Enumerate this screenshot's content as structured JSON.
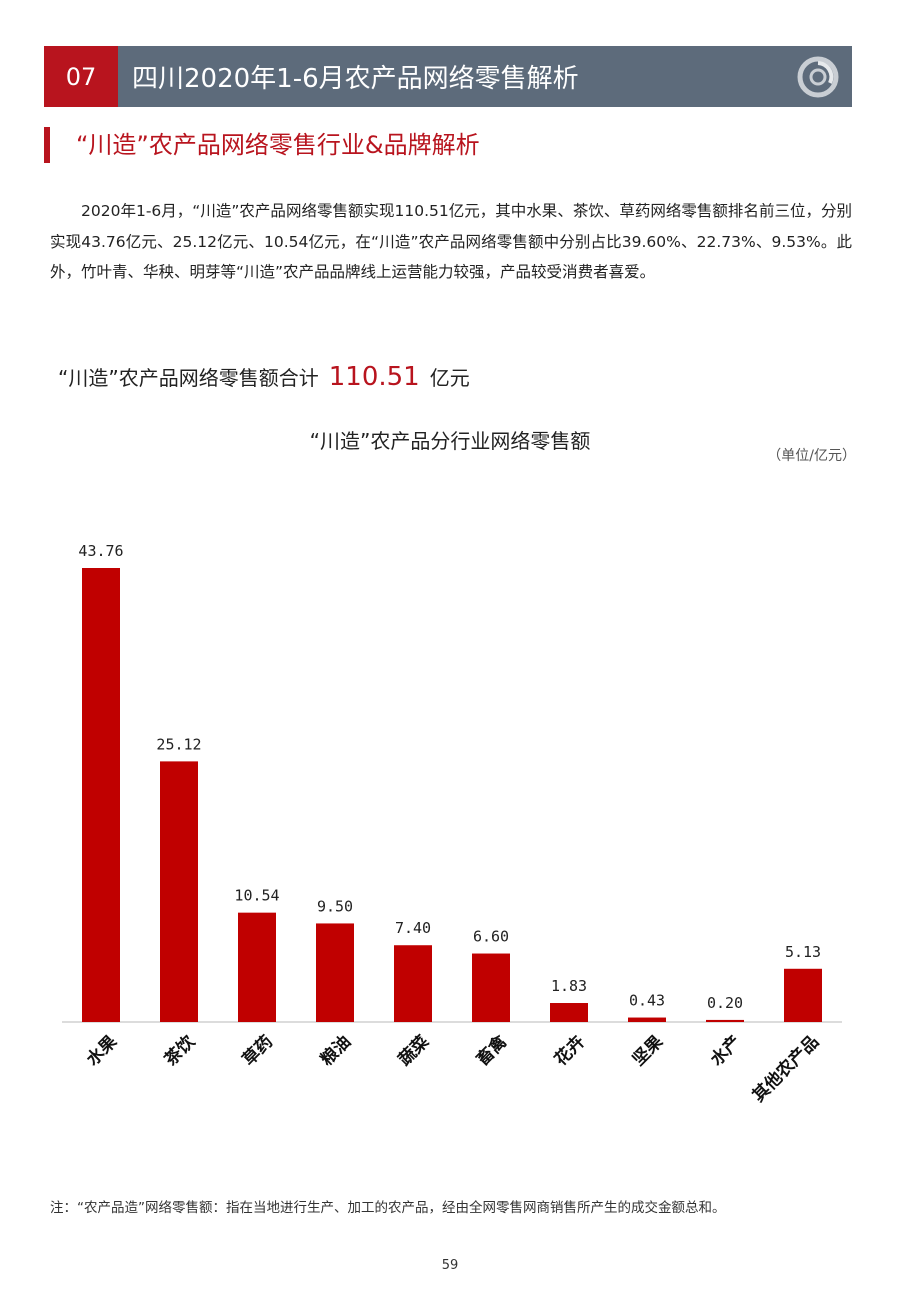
{
  "header": {
    "section_number": "07",
    "title": "四川2020年1-6月农产品网络零售解析"
  },
  "subheading": "“川造”农产品网络零售行业&品牌解析",
  "paragraph": "2020年1-6月，“川造”农产品网络零售额实现110.51亿元，其中水果、茶饮、草药网络零售额排名前三位，分别实现43.76亿元、25.12亿元、10.54亿元，在“川造”农产品网络零售额中分别占比39.60%、22.73%、9.53%。此外，竹叶青、华秧、明芽等“川造”农产品品牌线上运营能力较强，产品较受消费者喜爱。",
  "total": {
    "label": "“川造”农产品网络零售额合计",
    "value": "110.51",
    "unit": "亿元"
  },
  "chart_data": {
    "type": "bar",
    "title": "“川造”农产品分行业网络零售额",
    "unit_note": "（单位/亿元）",
    "categories": [
      "水果",
      "茶饮",
      "草药",
      "粮油",
      "蔬菜",
      "畜禽",
      "花卉",
      "坚果",
      "水产",
      "其他农产品"
    ],
    "values": [
      43.76,
      25.12,
      10.54,
      9.5,
      7.4,
      6.6,
      1.83,
      0.43,
      0.2,
      5.13
    ],
    "value_labels": [
      "43.76",
      "25.12",
      "10.54",
      "9.50",
      "7.40",
      "6.60",
      "1.83",
      "0.43",
      "0.20",
      "5.13"
    ],
    "bar_color": "#c00000",
    "ylim": [
      0,
      43.76
    ],
    "grid": false,
    "legend": "none"
  },
  "note": "注：“农产品造”网络零售额：指在当地进行生产、加工的农产品，经由全网零售网商销售所产生的成交金额总和。",
  "page_number": "59",
  "colors": {
    "accent_red": "#b8141e",
    "header_gray": "#5d6b7b"
  }
}
